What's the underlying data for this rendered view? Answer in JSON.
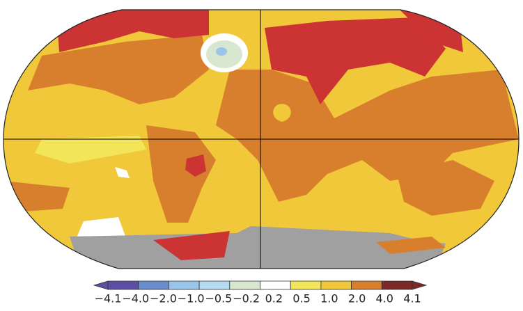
{
  "colorbar": {
    "labels": [
      "−4.1",
      "−4.0",
      "−2.0",
      "−1.0",
      "−0.5",
      "−0.2",
      "0.2",
      "0.5",
      "1.0",
      "2.0",
      "4.0",
      "4.1"
    ],
    "colors": [
      "#5a4fa0",
      "#6a8ccc",
      "#9ac4e8",
      "#b8daf0",
      "#d8e8d0",
      "#ffffff",
      "#f2e55a",
      "#f0c83a",
      "#d87f2e",
      "#cc3333",
      "#7a2a28"
    ]
  }
}
